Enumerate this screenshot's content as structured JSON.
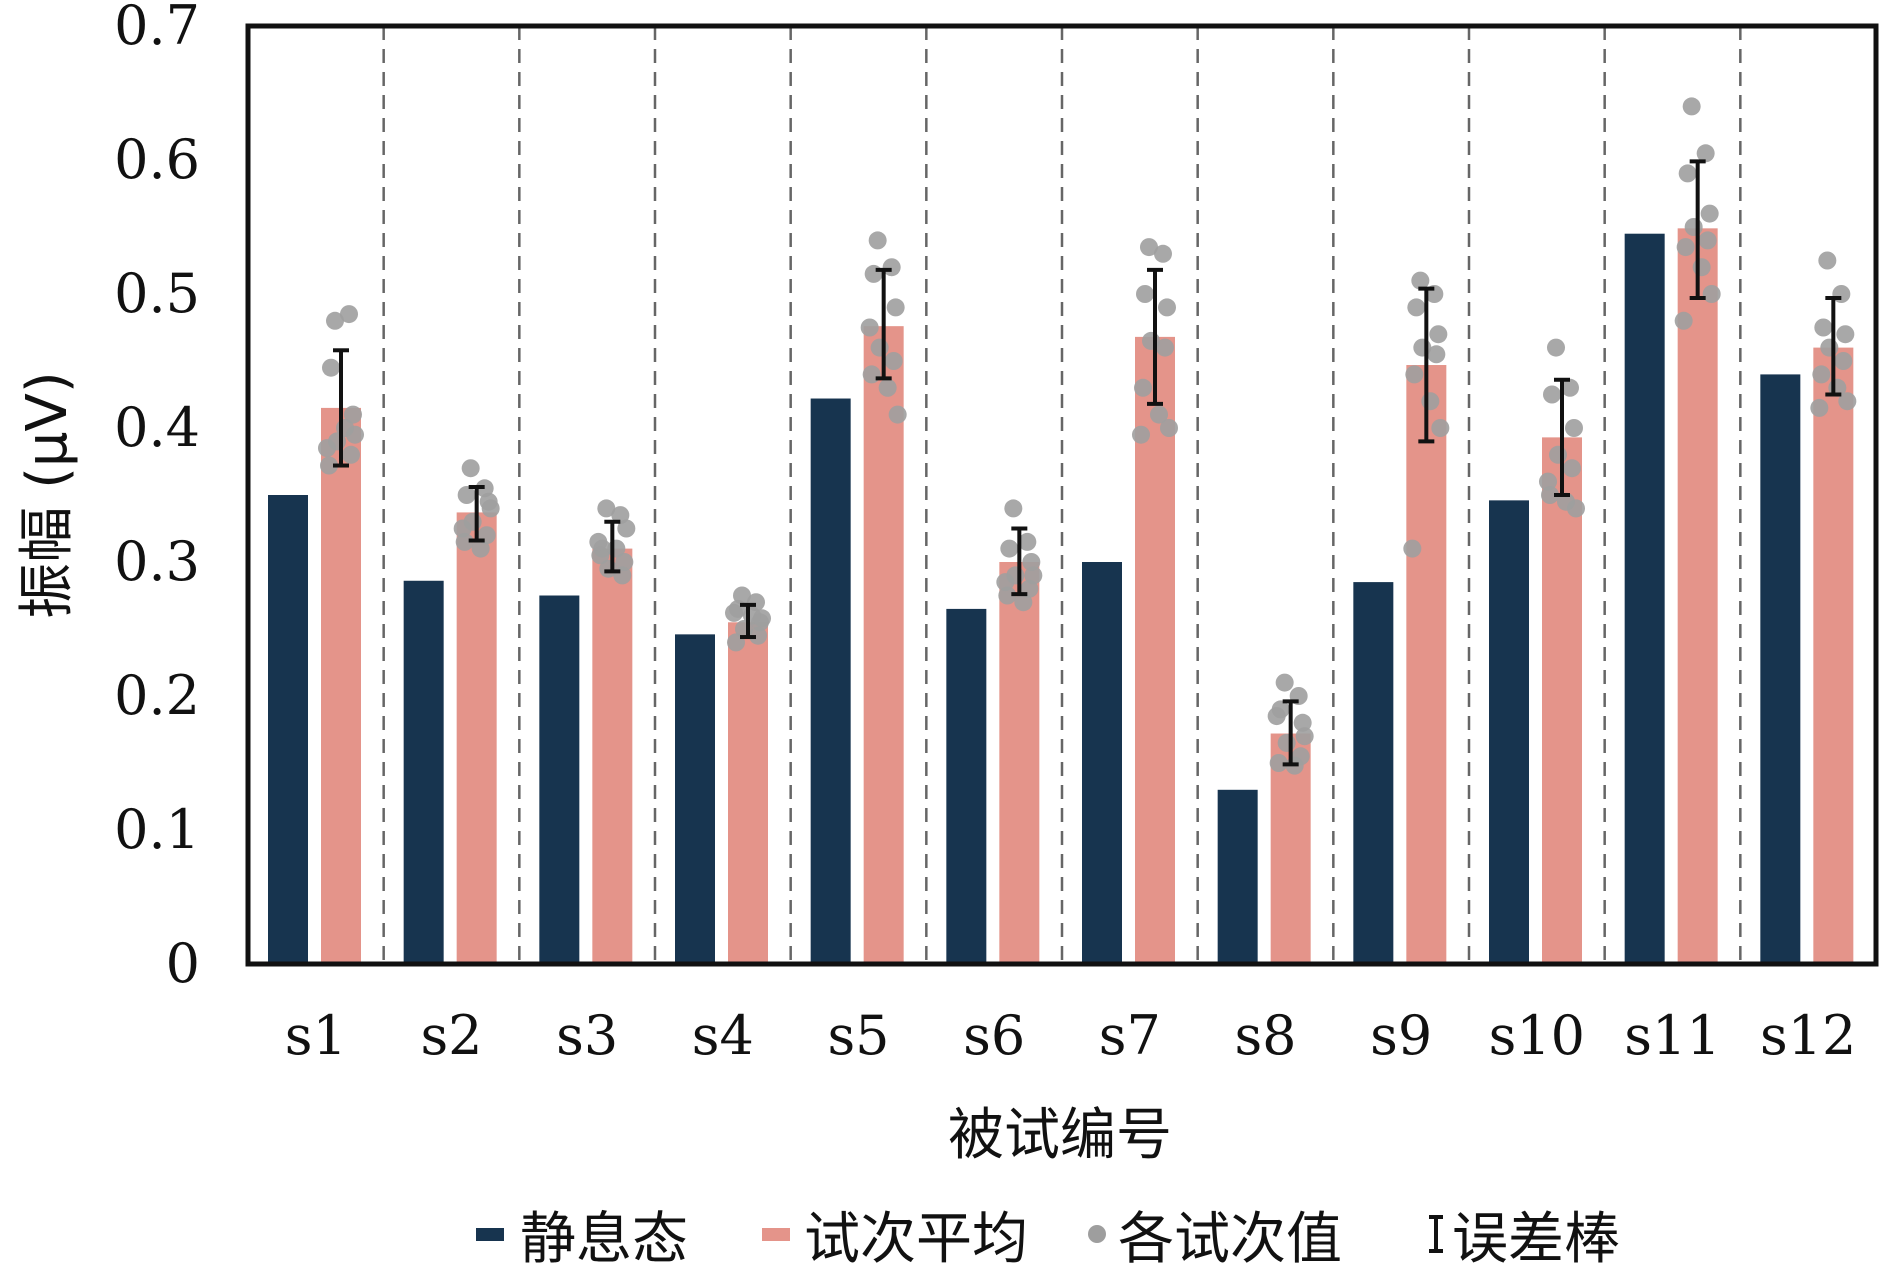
{
  "chart_data": {
    "type": "bar",
    "categories": [
      "s1",
      "s2",
      "s3",
      "s4",
      "s5",
      "s6",
      "s7",
      "s8",
      "s9",
      "s10",
      "s11",
      "s12"
    ],
    "xlabel": "被试编号",
    "ylabel": "振幅 (μV)",
    "ylim": [
      0,
      0.7
    ],
    "yticks": [
      "0",
      "0.1",
      "0.2",
      "0.3",
      "0.4",
      "0.5",
      "0.6",
      "0.7"
    ],
    "grid": "vertical dashed separators between subjects",
    "legend_position": "bottom",
    "series": [
      {
        "name": "静息态",
        "color": "#17344f",
        "values": [
          0.35,
          0.286,
          0.275,
          0.246,
          0.422,
          0.265,
          0.3,
          0.13,
          0.285,
          0.346,
          0.545,
          0.44
        ]
      },
      {
        "name": "试次平均",
        "color": "#e4948a",
        "values": [
          0.415,
          0.337,
          0.31,
          0.255,
          0.476,
          0.3,
          0.468,
          0.172,
          0.447,
          0.393,
          0.549,
          0.46
        ]
      }
    ],
    "error_bars": {
      "name": "误差棒",
      "color": "#111111",
      "low": [
        0.372,
        0.316,
        0.293,
        0.244,
        0.437,
        0.276,
        0.418,
        0.149,
        0.39,
        0.35,
        0.497,
        0.425
      ],
      "high": [
        0.458,
        0.356,
        0.33,
        0.268,
        0.518,
        0.325,
        0.518,
        0.196,
        0.504,
        0.436,
        0.599,
        0.497
      ]
    },
    "trials": {
      "name": "各试次值",
      "color": "#9e9e9e",
      "values": [
        [
          0.48,
          0.485,
          0.445,
          0.41,
          0.39,
          0.38,
          0.372,
          0.4,
          0.395,
          0.385
        ],
        [
          0.37,
          0.355,
          0.35,
          0.345,
          0.33,
          0.32,
          0.315,
          0.31,
          0.34,
          0.325
        ],
        [
          0.34,
          0.335,
          0.31,
          0.3,
          0.295,
          0.29,
          0.305,
          0.31,
          0.325,
          0.315
        ],
        [
          0.275,
          0.27,
          0.265,
          0.255,
          0.25,
          0.245,
          0.24,
          0.26,
          0.258,
          0.262
        ],
        [
          0.54,
          0.52,
          0.515,
          0.49,
          0.46,
          0.45,
          0.44,
          0.43,
          0.41,
          0.475
        ],
        [
          0.34,
          0.315,
          0.31,
          0.3,
          0.29,
          0.28,
          0.275,
          0.27,
          0.29,
          0.285
        ],
        [
          0.535,
          0.53,
          0.5,
          0.49,
          0.465,
          0.46,
          0.43,
          0.41,
          0.4,
          0.395
        ],
        [
          0.21,
          0.2,
          0.19,
          0.18,
          0.165,
          0.155,
          0.15,
          0.148,
          0.17,
          0.185
        ],
        [
          0.51,
          0.5,
          0.49,
          0.47,
          0.46,
          0.455,
          0.44,
          0.42,
          0.4,
          0.31
        ],
        [
          0.46,
          0.43,
          0.425,
          0.4,
          0.38,
          0.37,
          0.35,
          0.345,
          0.34,
          0.36
        ],
        [
          0.64,
          0.605,
          0.59,
          0.56,
          0.55,
          0.54,
          0.535,
          0.52,
          0.5,
          0.48
        ],
        [
          0.525,
          0.5,
          0.475,
          0.47,
          0.46,
          0.45,
          0.44,
          0.43,
          0.42,
          0.415
        ]
      ]
    }
  }
}
